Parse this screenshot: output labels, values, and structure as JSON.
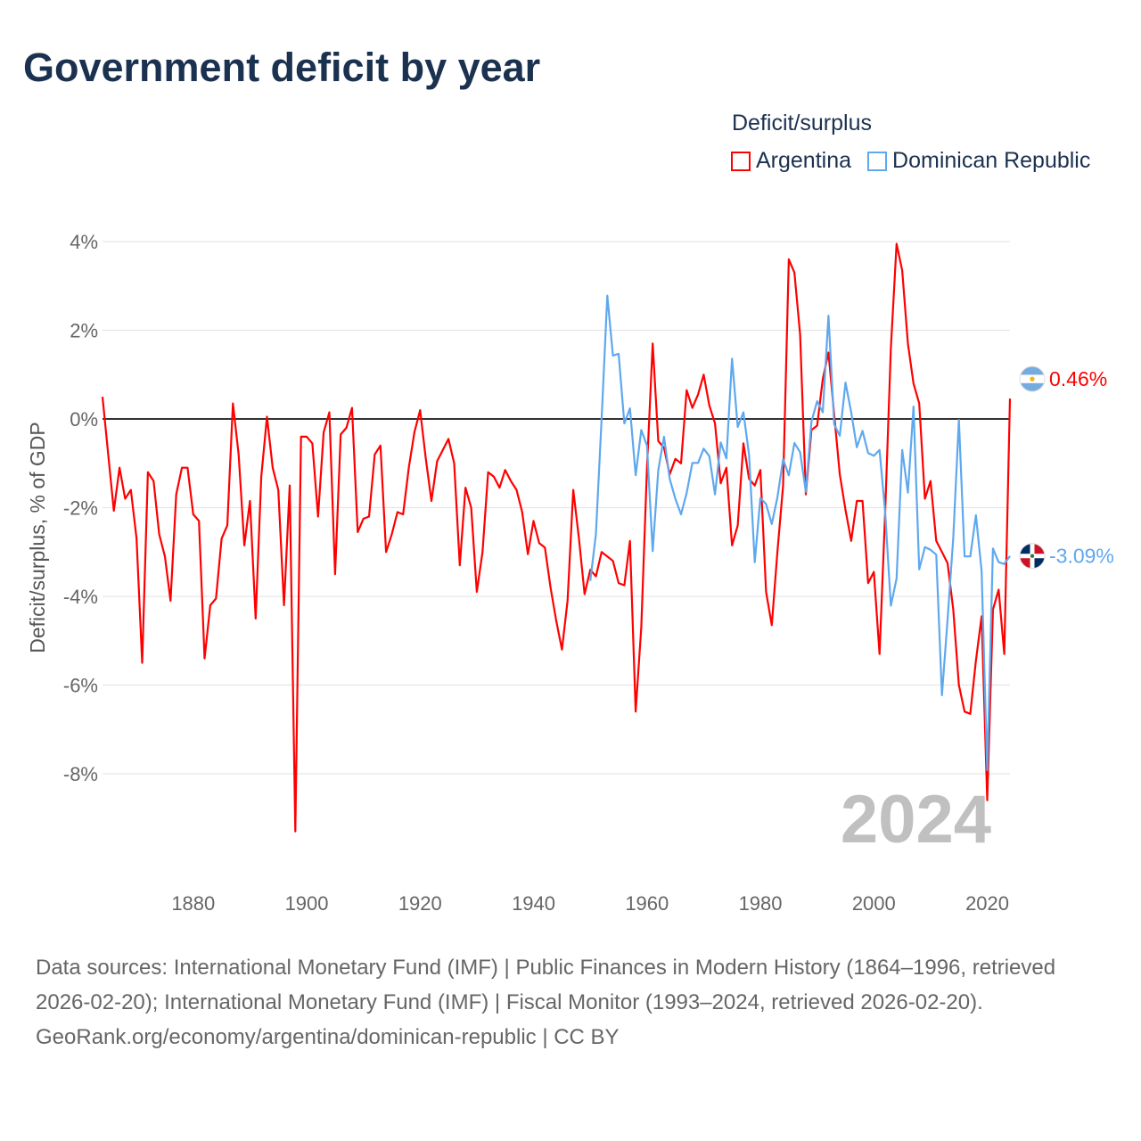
{
  "title": "Government deficit by year",
  "legend": {
    "title": "Deficit/surplus",
    "items": [
      {
        "label": "Argentina",
        "color": "#ff0000"
      },
      {
        "label": "Dominican Republic",
        "color": "#5ea8ee"
      }
    ]
  },
  "footer": {
    "sources": "Data sources: International Monetary Fund (IMF) | Public Finances in Modern History (1864–1996, retrieved 2026-02-20); International Monetary Fund (IMF) | Fiscal Monitor (1993–2024, retrieved 2026-02-20).",
    "credit": "GeoRank.org/economy/argentina/dominican-republic | CC BY"
  },
  "chart_data": {
    "type": "line",
    "title": "Government deficit by year",
    "xlabel": "",
    "ylabel": "Deficit/surplus, % of GDP",
    "xlim": [
      1864,
      2024
    ],
    "ylim": [
      -9.8,
      4.3
    ],
    "grid": true,
    "legend_position": "top-right",
    "year_watermark": "2024",
    "x_ticks": [
      1880,
      1900,
      1920,
      1940,
      1960,
      1980,
      2000,
      2020
    ],
    "x_tick_labels": [
      "1880",
      "1900",
      "1920",
      "1940",
      "1960",
      "1980",
      "2000",
      "2020"
    ],
    "y_ticks": [
      4,
      2,
      0,
      -2,
      -4,
      -6,
      -8
    ],
    "y_tick_labels": [
      "4%",
      "2%",
      "0%",
      "-2%",
      "-4%",
      "-6%",
      "-8%"
    ],
    "series": [
      {
        "name": "Argentina",
        "color": "#ff0000",
        "start_year": 1864,
        "end_label": "0.46%",
        "flag": "argentina-flag",
        "values": [
          0.5,
          -0.8,
          -2.07,
          -1.1,
          -1.8,
          -1.6,
          -2.7,
          -5.5,
          -1.2,
          -1.4,
          -2.6,
          -3.1,
          -4.1,
          -1.7,
          -1.1,
          -1.1,
          -2.15,
          -2.3,
          -5.4,
          -4.2,
          -4.05,
          -2.7,
          -2.4,
          0.35,
          -0.8,
          -2.85,
          -1.85,
          -4.5,
          -1.3,
          0.05,
          -1.1,
          -1.6,
          -4.2,
          -1.5,
          -9.3,
          -0.4,
          -0.4,
          -0.55,
          -2.2,
          -0.3,
          0.15,
          -3.5,
          -0.35,
          -0.2,
          0.25,
          -2.55,
          -2.25,
          -2.2,
          -0.8,
          -0.6,
          -3.0,
          -2.6,
          -2.1,
          -2.15,
          -1.1,
          -0.3,
          0.2,
          -0.9,
          -1.85,
          -0.95,
          -0.7,
          -0.45,
          -1.0,
          -3.3,
          -1.55,
          -2.0,
          -3.9,
          -3.0,
          -1.2,
          -1.3,
          -1.55,
          -1.15,
          -1.4,
          -1.6,
          -2.1,
          -3.05,
          -2.3,
          -2.8,
          -2.9,
          -3.8,
          -4.55,
          -5.2,
          -4.1,
          -1.6,
          -2.7,
          -3.95,
          -3.4,
          -3.55,
          -3.0,
          -3.1,
          -3.2,
          -3.7,
          -3.75,
          -2.75,
          -6.6,
          -4.7,
          -1.1,
          1.7,
          -0.5,
          -0.65,
          -1.25,
          -0.9,
          -1.0,
          0.65,
          0.25,
          0.55,
          1.0,
          0.3,
          -0.1,
          -1.45,
          -1.1,
          -2.85,
          -2.4,
          -0.55,
          -1.35,
          -1.5,
          -1.15,
          -3.9,
          -4.65,
          -3.0,
          -1.5,
          3.6,
          3.3,
          1.9,
          -1.7,
          -0.25,
          -0.15,
          0.9,
          1.5,
          0.1,
          -1.25,
          -2.05,
          -2.75,
          -1.85,
          -1.85,
          -3.7,
          -3.45,
          -5.3,
          -2.1,
          1.6,
          3.95,
          3.35,
          1.7,
          0.8,
          0.35,
          -1.8,
          -1.4,
          -2.75,
          -3.0,
          -3.25,
          -4.3,
          -6.0,
          -6.6,
          -6.65,
          -5.45,
          -4.45,
          -8.6,
          -4.3,
          -3.85,
          -5.3,
          0.46
        ]
      },
      {
        "name": "Dominican Republic",
        "color": "#5ea8ee",
        "start_year": 1950,
        "end_label": "-3.09%",
        "flag": "dominican-republic-flag",
        "values": [
          -3.65,
          -2.6,
          0.0,
          2.78,
          1.43,
          1.47,
          -0.1,
          0.24,
          -1.27,
          -0.25,
          -0.6,
          -2.98,
          -1.15,
          -0.4,
          -1.35,
          -1.8,
          -2.15,
          -1.67,
          -0.99,
          -0.99,
          -0.67,
          -0.84,
          -1.7,
          -0.53,
          -0.89,
          1.36,
          -0.18,
          0.15,
          -0.81,
          -3.23,
          -1.78,
          -1.92,
          -2.37,
          -1.77,
          -0.91,
          -1.27,
          -0.54,
          -0.75,
          -1.64,
          -0.06,
          0.4,
          0.15,
          2.33,
          -0.12,
          -0.38,
          0.82,
          0.15,
          -0.64,
          -0.27,
          -0.77,
          -0.83,
          -0.7,
          -2.1,
          -4.21,
          -3.6,
          -0.7,
          -1.66,
          0.28,
          -3.39,
          -2.89,
          -2.95,
          -3.06,
          -6.23,
          -4.52,
          -2.68,
          -0.02,
          -3.1,
          -3.1,
          -2.17,
          -3.43,
          -7.92,
          -2.92,
          -3.23,
          -3.27,
          -3.09
        ]
      }
    ]
  }
}
